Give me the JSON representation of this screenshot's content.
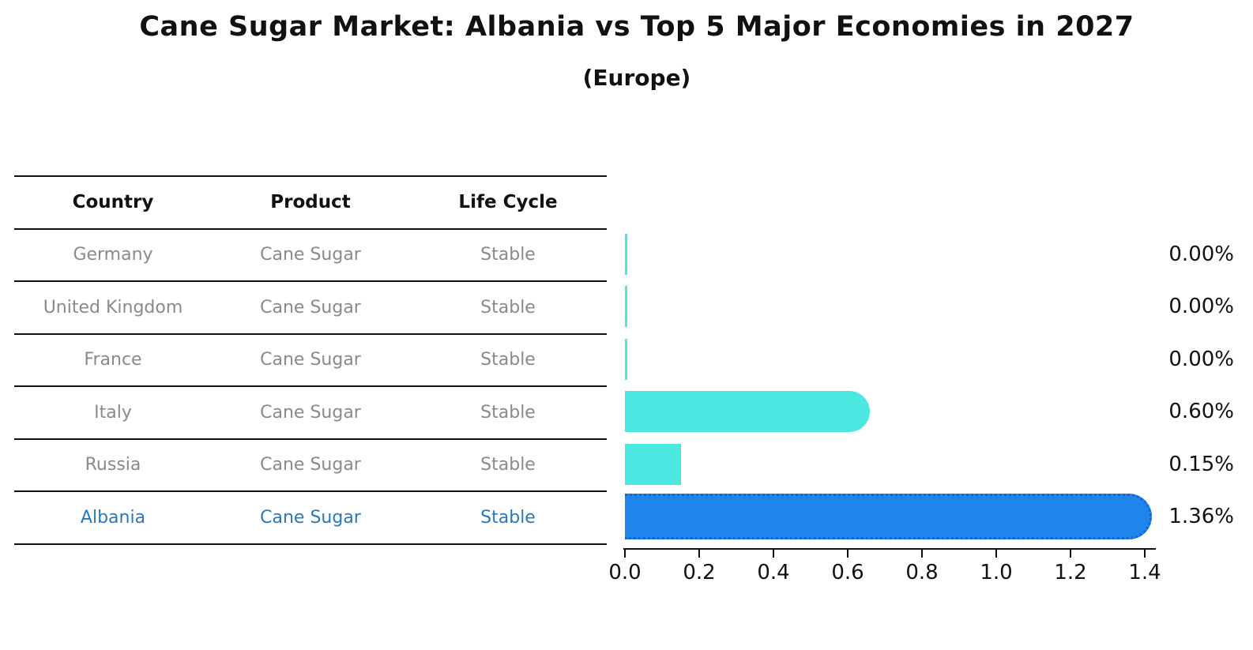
{
  "title": "Cane Sugar Market: Albania vs Top 5 Major Economies in 2027",
  "subtitle": "(Europe)",
  "table": {
    "headers": [
      "Country",
      "Product",
      "Life Cycle"
    ],
    "rows": [
      {
        "country": "Germany",
        "product": "Cane Sugar",
        "life_cycle": "Stable",
        "highlight": false
      },
      {
        "country": "United Kingdom",
        "product": "Cane Sugar",
        "life_cycle": "Stable",
        "highlight": false
      },
      {
        "country": "France",
        "product": "Cane Sugar",
        "life_cycle": "Stable",
        "highlight": false
      },
      {
        "country": "Italy",
        "product": "Cane Sugar",
        "life_cycle": "Stable",
        "highlight": false
      },
      {
        "country": "Russia",
        "product": "Cane Sugar",
        "life_cycle": "Stable",
        "highlight": false
      },
      {
        "country": "Albania",
        "product": "Cane Sugar",
        "life_cycle": "Stable",
        "highlight": true
      }
    ]
  },
  "chart_data": {
    "type": "bar",
    "orientation": "horizontal",
    "title": "Cane Sugar Market: Albania vs Top 5 Major Economies in 2027",
    "subtitle": "(Europe)",
    "categories": [
      "Germany",
      "United Kingdom",
      "France",
      "Italy",
      "Russia",
      "Albania"
    ],
    "values": [
      0.0,
      0.0,
      0.0,
      0.6,
      0.15,
      1.36
    ],
    "value_labels": [
      "0.00%",
      "0.00%",
      "0.00%",
      "0.60%",
      "0.15%",
      "1.36%"
    ],
    "xlabel": "",
    "ylabel": "",
    "xlim": [
      0.0,
      1.4
    ],
    "x_ticks": [
      "0.0",
      "0.2",
      "0.4",
      "0.6",
      "0.8",
      "1.0",
      "1.2",
      "1.4"
    ],
    "grid": false,
    "legend": false,
    "highlight_category": "Albania"
  },
  "colors": {
    "bar_default": "#4be8e2",
    "bar_highlight": "#1f85eb",
    "bar_highlight_border": "#1266d6",
    "highlight_text": "#2878be",
    "row_text": "#8a8a8a",
    "header_text": "#111111",
    "axis": "#111111"
  }
}
